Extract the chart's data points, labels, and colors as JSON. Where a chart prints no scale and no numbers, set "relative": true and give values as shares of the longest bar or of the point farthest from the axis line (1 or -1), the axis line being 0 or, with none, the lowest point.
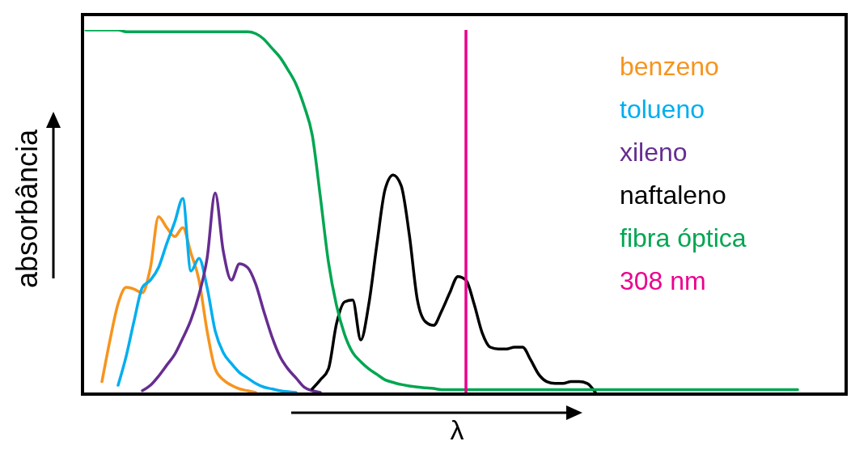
{
  "chart_data": {
    "type": "line",
    "relative": true,
    "ylabel": "absorbância",
    "xlabel": "λ",
    "legend": "top right",
    "categories": [
      null,
      null,
      null,
      null,
      null,
      null,
      null,
      null,
      null,
      null,
      null,
      null,
      null,
      null,
      null,
      null,
      null,
      null,
      null,
      null,
      null,
      null,
      null,
      null,
      null,
      null,
      null,
      null,
      null,
      null,
      null,
      null,
      null,
      null,
      null,
      null,
      null,
      null,
      null,
      null,
      null,
      null,
      null,
      null,
      null,
      null,
      null,
      null,
      null,
      null,
      null,
      null,
      null,
      null,
      null,
      null,
      null,
      null,
      null,
      null,
      null,
      null,
      null,
      null,
      null,
      null,
      null,
      null,
      null,
      null,
      null,
      null,
      null,
      null,
      null,
      null,
      null,
      null,
      null,
      null,
      null,
      null,
      null,
      null,
      null,
      null,
      null,
      null,
      null,
      null,
      null,
      null,
      null,
      null,
      null
    ],
    "series": [
      {
        "name": "benzeno",
        "color": "#f7941d",
        "values": [
          null,
          null,
          0.03,
          0.145,
          0.245,
          0.29,
          0.285,
          0.275,
          0.345,
          0.485,
          0.455,
          0.43,
          0.455,
          0.385,
          0.31,
          0.17,
          0.065,
          0.035,
          0.02,
          0.01,
          0.005,
          0,
          null,
          null,
          null,
          null,
          null,
          null,
          null,
          null,
          null,
          null,
          null,
          null,
          null,
          null,
          null,
          null,
          null,
          null,
          null,
          null,
          null,
          null,
          null,
          null,
          null,
          null,
          null,
          null,
          null,
          null,
          null,
          null,
          null,
          null,
          null,
          null,
          null,
          null,
          null,
          null,
          null,
          null,
          null,
          null,
          null,
          null,
          null,
          null,
          null,
          null,
          null,
          null,
          null,
          null,
          null,
          null,
          null,
          null,
          null,
          null,
          null,
          null,
          null,
          null,
          null,
          null,
          null,
          null,
          null,
          null,
          null,
          null,
          null
        ]
      },
      {
        "name": "tolueno",
        "color": "#00aeef",
        "values": [
          null,
          null,
          null,
          null,
          0.02,
          0.1,
          0.2,
          0.29,
          0.31,
          0.345,
          0.41,
          0.47,
          0.535,
          0.335,
          0.37,
          0.29,
          0.17,
          0.11,
          0.08,
          0.055,
          0.04,
          0.025,
          0.015,
          0.01,
          0.005,
          0.002,
          0,
          null,
          null,
          null,
          null,
          null,
          null,
          null,
          null,
          null,
          null,
          null,
          null,
          null,
          null,
          null,
          null,
          null,
          null,
          null,
          null,
          null,
          null,
          null,
          null,
          null,
          null,
          null,
          null,
          null,
          null,
          null,
          null,
          null,
          null,
          null,
          null,
          null,
          null,
          null,
          null,
          null,
          null,
          null,
          null,
          null,
          null,
          null,
          null,
          null,
          null,
          null,
          null,
          null,
          null,
          null,
          null,
          null,
          null,
          null,
          null,
          null,
          null,
          null,
          null,
          null,
          null,
          null,
          null
        ]
      },
      {
        "name": "xileno",
        "color": "#662d91",
        "values": [
          null,
          null,
          null,
          null,
          null,
          null,
          null,
          0.005,
          0.02,
          0.045,
          0.075,
          0.105,
          0.15,
          0.2,
          0.27,
          0.37,
          0.55,
          0.39,
          0.31,
          0.355,
          0.345,
          0.3,
          0.225,
          0.155,
          0.1,
          0.065,
          0.04,
          0.015,
          0.005,
          0,
          null,
          null,
          null,
          null,
          null,
          null,
          null,
          null,
          null,
          null,
          null,
          null,
          null,
          null,
          null,
          null,
          null,
          null,
          null,
          null,
          null,
          null,
          null,
          null,
          null,
          null,
          null,
          null,
          null,
          null,
          null,
          null,
          null,
          null,
          null,
          null,
          null,
          null,
          null,
          null,
          null,
          null,
          null,
          null,
          null,
          null,
          null,
          null,
          null,
          null,
          null,
          null,
          null,
          null,
          null,
          null,
          null,
          null,
          null,
          null,
          null,
          null,
          null,
          null,
          null
        ]
      },
      {
        "name": "naftaleno",
        "color": "#000000",
        "values": [
          null,
          null,
          null,
          null,
          null,
          null,
          null,
          null,
          null,
          null,
          null,
          null,
          null,
          null,
          null,
          null,
          null,
          null,
          null,
          null,
          null,
          null,
          null,
          null,
          null,
          null,
          null,
          null,
          0.01,
          0.035,
          0.065,
          0.19,
          0.25,
          0.255,
          0.145,
          0.245,
          0.41,
          0.56,
          0.6,
          0.57,
          0.435,
          0.255,
          0.195,
          0.185,
          0.225,
          0.275,
          0.32,
          0.31,
          0.245,
          0.165,
          0.125,
          0.12,
          0.12,
          0.125,
          0.125,
          0.09,
          0.05,
          0.03,
          0.025,
          0.025,
          0.03,
          0.03,
          0.025,
          0,
          null,
          null,
          null,
          null,
          null,
          null,
          null,
          null,
          null,
          null,
          null,
          null,
          null,
          null,
          null,
          null,
          null,
          null,
          null,
          null,
          null,
          null,
          null,
          null,
          null,
          null,
          null,
          null,
          null,
          null,
          null
        ]
      },
      {
        "name": "fibra óptica",
        "color": "#00a651",
        "values": [
          1,
          1,
          1,
          1,
          1,
          0.995,
          0.995,
          0.995,
          0.995,
          0.995,
          0.995,
          0.995,
          0.995,
          0.995,
          0.995,
          0.995,
          0.995,
          0.995,
          0.995,
          0.995,
          0.995,
          0.99,
          0.975,
          0.95,
          0.925,
          0.89,
          0.85,
          0.79,
          0.71,
          0.54,
          0.36,
          0.24,
          0.16,
          0.11,
          0.085,
          0.065,
          0.05,
          0.035,
          0.028,
          0.022,
          0.018,
          0.015,
          0.013,
          0.011,
          0.008,
          0.008,
          0.008,
          0.008,
          0.008,
          0.008,
          0.008,
          0.008,
          0.008,
          0.008,
          0.008,
          0.008,
          0.008,
          0.008,
          0.008,
          0.008,
          0.008,
          0.008,
          0.008,
          0.008,
          0.008,
          0.008,
          0.008,
          0.008,
          0.008,
          0.008,
          0.008,
          0.008,
          0.008,
          0.008,
          0.008,
          0.008,
          0.008,
          0.008,
          0.008,
          0.008,
          0.008,
          0.008,
          0.008,
          0.008,
          0.008,
          0.008,
          0.008,
          0.008,
          0.008,
          null,
          null,
          null,
          null,
          null,
          null
        ]
      }
    ],
    "annotations": [
      "308 nm"
    ]
  }
}
